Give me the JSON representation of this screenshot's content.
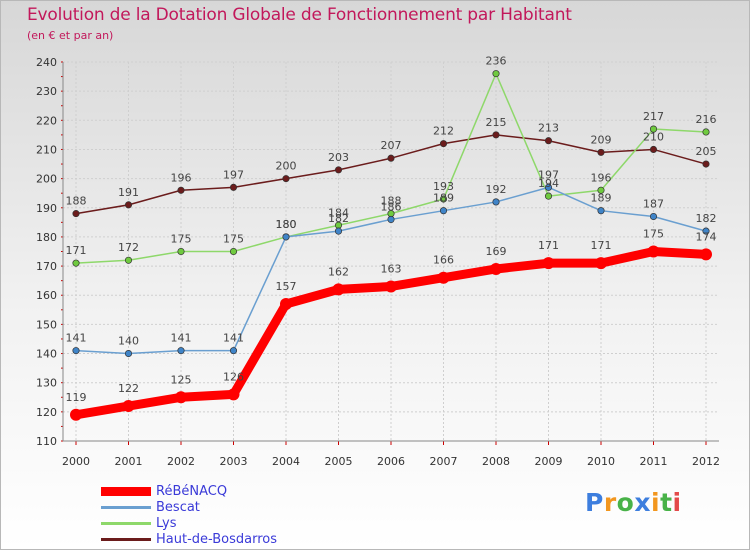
{
  "title": "Evolution de la Dotation Globale de Fonctionnement par Habitant",
  "subtitle": "(en € et par an)",
  "logo": {
    "text": "Proxiti",
    "letters": [
      "P",
      "r",
      "o",
      "x",
      "i",
      "t",
      "i"
    ],
    "colors": [
      "#3d7ede",
      "#f2961e",
      "#48b248",
      "#3d7ede",
      "#f2961e",
      "#48b248",
      "#e34a4a"
    ]
  },
  "chart_data": {
    "type": "line",
    "title": "Evolution de la Dotation Globale de Fonctionnement par Habitant",
    "ylabel": "(en € et par an)",
    "xlabel": "",
    "x": [
      "2000",
      "2001",
      "2002",
      "2003",
      "2004",
      "2005",
      "2006",
      "2007",
      "2008",
      "2009",
      "2010",
      "2011",
      "2012"
    ],
    "ylim": [
      110,
      240
    ],
    "yticks": [
      110,
      120,
      130,
      140,
      150,
      160,
      170,
      180,
      190,
      200,
      210,
      220,
      230,
      240
    ],
    "grid": true,
    "legend_position": "bottom-left",
    "series": [
      {
        "name": "Haut-de-Bosdarros",
        "color": "#6b1c1c",
        "marker_color": "#6b1c1c",
        "values": [
          188,
          191,
          196,
          197,
          200,
          203,
          207,
          212,
          215,
          213,
          209,
          210,
          205
        ],
        "labels": [
          "188",
          "191",
          "196",
          "197",
          "200",
          "203",
          "207",
          "212",
          "215",
          "213",
          "209",
          "210",
          "205"
        ]
      },
      {
        "name": "Lys",
        "color": "#8ed86a",
        "marker_color": "#6fca3f",
        "values": [
          171,
          172,
          175,
          175,
          180,
          184,
          188,
          193,
          236,
          194,
          196,
          217,
          216
        ],
        "labels": [
          "171",
          "172",
          "175",
          "175",
          "180",
          "184",
          "188",
          "193",
          "236",
          "194",
          "196",
          "217",
          "216"
        ]
      },
      {
        "name": "Bescat",
        "color": "#6a9fd0",
        "marker_color": "#3f84c8",
        "values": [
          141,
          140,
          141,
          141,
          180,
          182,
          186,
          189,
          192,
          197,
          189,
          187,
          182
        ],
        "labels": [
          "141",
          "140",
          "141",
          "141",
          "180",
          "182",
          "186",
          "189",
          "192",
          "197",
          "189",
          "187",
          "182"
        ]
      },
      {
        "name": "RéBéNACQ",
        "color": "#ff0000",
        "marker_color": "#ff0000",
        "values": [
          119,
          122,
          125,
          126,
          157,
          162,
          163,
          166,
          169,
          171,
          171,
          175,
          174
        ],
        "labels": [
          "119",
          "122",
          "125",
          "126",
          "157",
          "162",
          "163",
          "166",
          "169",
          "171",
          "171",
          "175",
          "174"
        ]
      }
    ],
    "legend": [
      {
        "name": "RéBéNACQ",
        "color": "#ff0000"
      },
      {
        "name": "Bescat",
        "color": "#6a9fd0"
      },
      {
        "name": "Lys",
        "color": "#8ed86a"
      },
      {
        "name": "Haut-de-Bosdarros",
        "color": "#6b1c1c"
      }
    ]
  }
}
